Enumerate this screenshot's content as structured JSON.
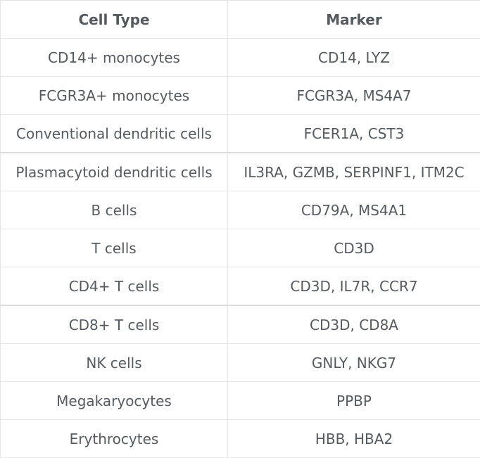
{
  "table": {
    "headers": [
      "Cell Type",
      "Marker"
    ],
    "rows": [
      [
        "CD14+ monocytes",
        "CD14, LYZ"
      ],
      [
        "FCGR3A+ monocytes",
        "FCGR3A, MS4A7"
      ],
      [
        "Conventional dendritic cells",
        "FCER1A, CST3"
      ],
      [
        "Plasmacytoid dendritic cells",
        "IL3RA, GZMB, SERPINF1, ITM2C"
      ],
      [
        "B cells",
        "CD79A, MS4A1"
      ],
      [
        "T cells",
        "CD3D"
      ],
      [
        "CD4+ T cells",
        "CD3D, IL7R, CCR7"
      ],
      [
        "CD8+ T cells",
        "CD3D, CD8A"
      ],
      [
        "NK cells",
        "GNLY, NKG7"
      ],
      [
        "Megakaryocytes",
        "PPBP"
      ],
      [
        "Erythrocytes",
        "HBB, HBA2"
      ]
    ]
  }
}
